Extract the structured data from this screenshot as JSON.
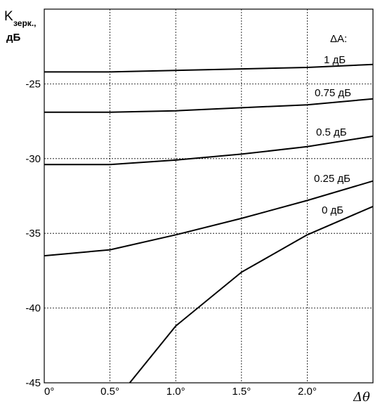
{
  "chart_data": {
    "type": "line",
    "ylabel_main": "K",
    "ylabel_sub": "зерк.,",
    "ylabel_unit": "дБ",
    "xlabel": "Δθ",
    "xlim": [
      0,
      2.5
    ],
    "ylim": [
      -45,
      -20
    ],
    "xticks": [
      0,
      0.5,
      1.0,
      1.5,
      2.0
    ],
    "xtick_labels": [
      "0°",
      "0.5°",
      "1.0°",
      "1.5°",
      "2.0°"
    ],
    "yticks": [
      -25,
      -30,
      -35,
      -40,
      -45
    ],
    "ytick_labels": [
      "-25",
      "-30",
      "-35",
      "-40",
      "-45"
    ],
    "grid": true,
    "legend_title": "ΔA:",
    "series": [
      {
        "name": "1 дБ",
        "x": [
          0,
          0.5,
          1.0,
          1.5,
          2.0,
          2.5
        ],
        "y": [
          -24.2,
          -24.2,
          -24.1,
          -24.0,
          -23.9,
          -23.7
        ]
      },
      {
        "name": "0.75 дБ",
        "x": [
          0,
          0.5,
          1.0,
          1.5,
          2.0,
          2.5
        ],
        "y": [
          -26.9,
          -26.9,
          -26.8,
          -26.6,
          -26.4,
          -26.0
        ]
      },
      {
        "name": "0.5 дБ",
        "x": [
          0,
          0.5,
          1.0,
          1.5,
          2.0,
          2.5
        ],
        "y": [
          -30.4,
          -30.4,
          -30.1,
          -29.7,
          -29.2,
          -28.5
        ]
      },
      {
        "name": "0.25 дБ",
        "x": [
          0,
          0.5,
          1.0,
          1.5,
          2.0,
          2.5
        ],
        "y": [
          -36.5,
          -36.1,
          -35.1,
          -34.0,
          -32.8,
          -31.5
        ]
      },
      {
        "name": "0 дБ",
        "x": [
          0.65,
          1.0,
          1.5,
          2.0,
          2.5
        ],
        "y": [
          -45.0,
          -41.2,
          -37.6,
          -35.1,
          -33.2
        ]
      }
    ]
  }
}
